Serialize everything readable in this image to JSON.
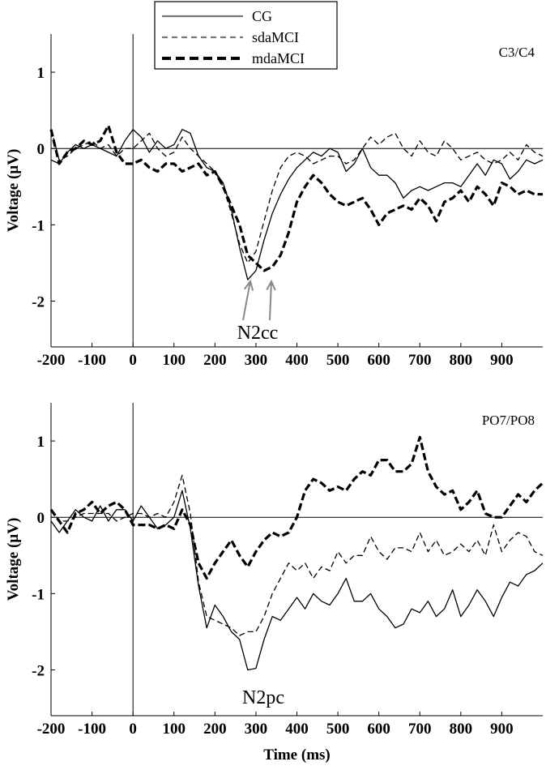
{
  "chart_data": [
    {
      "type": "line",
      "panel_label": "C3/C4",
      "xlabel": "",
      "ylabel": "Voltage (µV)",
      "xlim": [
        -200,
        1000
      ],
      "ylim": [
        -2.6,
        1.5
      ],
      "xticks": [
        -200,
        -100,
        0,
        100,
        200,
        300,
        400,
        500,
        600,
        700,
        800,
        900
      ],
      "yticks": [
        1,
        0,
        -1,
        -2
      ],
      "tick_labels_x": [
        "-200",
        "-100",
        "0",
        "100",
        "200",
        "300",
        "400",
        "500",
        "600",
        "700",
        "800",
        "900"
      ],
      "tick_labels_y": [
        "1",
        "0",
        "-1",
        "-2"
      ],
      "legend": {
        "placement": "top-center",
        "entries": [
          "CG",
          "sdaMCI",
          "mdaMCI"
        ]
      },
      "annotation": {
        "text": "N2cc",
        "arrow_targets": [
          [
            280,
            -1.72
          ],
          [
            330,
            -1.72
          ]
        ]
      },
      "series": [
        {
          "name": "CG",
          "style": "solid",
          "x": [
            -200,
            -180,
            -160,
            -140,
            -120,
            -100,
            -80,
            -60,
            -40,
            -20,
            0,
            20,
            40,
            60,
            80,
            100,
            120,
            140,
            160,
            180,
            200,
            220,
            240,
            260,
            280,
            300,
            320,
            340,
            360,
            380,
            400,
            420,
            440,
            460,
            480,
            500,
            520,
            540,
            560,
            580,
            600,
            620,
            640,
            660,
            680,
            700,
            720,
            740,
            760,
            780,
            800,
            820,
            840,
            860,
            880,
            900,
            920,
            940,
            960,
            980,
            1000
          ],
          "y": [
            -0.15,
            -0.2,
            -0.05,
            0.05,
            0.0,
            0.05,
            0.0,
            -0.05,
            -0.1,
            0.1,
            0.25,
            0.15,
            -0.05,
            0.1,
            0.0,
            0.05,
            0.25,
            0.2,
            -0.1,
            -0.25,
            -0.3,
            -0.45,
            -0.8,
            -1.3,
            -1.72,
            -1.6,
            -1.2,
            -0.85,
            -0.6,
            -0.4,
            -0.25,
            -0.15,
            -0.05,
            -0.1,
            0.0,
            -0.05,
            -0.3,
            -0.2,
            0.0,
            -0.25,
            -0.35,
            -0.35,
            -0.45,
            -0.65,
            -0.55,
            -0.5,
            -0.55,
            -0.5,
            -0.45,
            -0.45,
            -0.5,
            -0.35,
            -0.2,
            -0.35,
            -0.15,
            -0.2,
            -0.4,
            -0.3,
            -0.15,
            -0.2,
            -0.15
          ]
        },
        {
          "name": "sdaMCI",
          "style": "dashed-thin",
          "x": [
            -200,
            -180,
            -160,
            -140,
            -120,
            -100,
            -80,
            -60,
            -40,
            -20,
            0,
            20,
            40,
            60,
            80,
            100,
            120,
            140,
            160,
            180,
            200,
            220,
            240,
            260,
            280,
            300,
            320,
            340,
            360,
            380,
            400,
            420,
            440,
            460,
            480,
            500,
            520,
            540,
            560,
            580,
            600,
            620,
            640,
            660,
            680,
            700,
            720,
            740,
            760,
            780,
            800,
            820,
            840,
            860,
            880,
            900,
            920,
            940,
            960,
            980,
            1000
          ],
          "y": [
            0.25,
            -0.15,
            -0.1,
            0.0,
            0.05,
            0.1,
            0.0,
            0.05,
            -0.1,
            0.0,
            0.0,
            0.1,
            0.2,
            0.0,
            -0.1,
            -0.05,
            0.15,
            0.0,
            -0.1,
            -0.2,
            -0.3,
            -0.5,
            -0.85,
            -1.25,
            -1.5,
            -1.35,
            -0.95,
            -0.55,
            -0.25,
            -0.1,
            -0.05,
            -0.1,
            -0.2,
            -0.15,
            -0.1,
            -0.1,
            -0.2,
            -0.15,
            0.0,
            0.15,
            0.05,
            0.15,
            0.2,
            0.0,
            -0.1,
            0.1,
            -0.05,
            -0.1,
            0.1,
            0.0,
            -0.15,
            -0.1,
            -0.05,
            -0.15,
            -0.2,
            -0.15,
            -0.05,
            -0.15,
            0.05,
            -0.05,
            -0.1
          ]
        },
        {
          "name": "mdaMCI",
          "style": "dashed-thick",
          "x": [
            -200,
            -180,
            -160,
            -140,
            -120,
            -100,
            -80,
            -60,
            -40,
            -20,
            0,
            20,
            40,
            60,
            80,
            100,
            120,
            140,
            160,
            180,
            200,
            220,
            240,
            260,
            280,
            300,
            320,
            340,
            360,
            380,
            400,
            420,
            440,
            460,
            480,
            500,
            520,
            540,
            560,
            580,
            600,
            620,
            640,
            660,
            680,
            700,
            720,
            740,
            760,
            780,
            800,
            820,
            840,
            860,
            880,
            900,
            920,
            940,
            960,
            980,
            1000
          ],
          "y": [
            0.25,
            -0.2,
            -0.05,
            0.0,
            0.1,
            0.05,
            0.1,
            0.3,
            -0.05,
            -0.2,
            -0.2,
            -0.15,
            -0.25,
            -0.3,
            -0.2,
            -0.2,
            -0.3,
            -0.25,
            -0.2,
            -0.35,
            -0.3,
            -0.5,
            -0.75,
            -1.0,
            -1.4,
            -1.5,
            -1.6,
            -1.55,
            -1.4,
            -1.1,
            -0.7,
            -0.5,
            -0.35,
            -0.45,
            -0.6,
            -0.7,
            -0.75,
            -0.7,
            -0.65,
            -0.8,
            -1.0,
            -0.85,
            -0.8,
            -0.75,
            -0.8,
            -0.65,
            -0.75,
            -0.95,
            -0.7,
            -0.65,
            -0.55,
            -0.7,
            -0.5,
            -0.6,
            -0.75,
            -0.45,
            -0.5,
            -0.6,
            -0.55,
            -0.6,
            -0.6
          ]
        }
      ]
    },
    {
      "type": "line",
      "panel_label": "PO7/PO8",
      "xlabel": "Time (ms)",
      "ylabel": "Voltage (µV)",
      "xlim": [
        -200,
        1000
      ],
      "ylim": [
        -2.6,
        1.5
      ],
      "xticks": [
        -200,
        -100,
        0,
        100,
        200,
        300,
        400,
        500,
        600,
        700,
        800,
        900
      ],
      "yticks": [
        1,
        0,
        -1,
        -2
      ],
      "tick_labels_x": [
        "-200",
        "-100",
        "0",
        "100",
        "200",
        "300",
        "400",
        "500",
        "600",
        "700",
        "800",
        "900"
      ],
      "tick_labels_y": [
        "1",
        "0",
        "-1",
        "-2"
      ],
      "annotation": {
        "text": "N2pc"
      },
      "series": [
        {
          "name": "CG",
          "style": "solid",
          "x": [
            -200,
            -180,
            -160,
            -140,
            -120,
            -100,
            -80,
            -60,
            -40,
            -20,
            0,
            20,
            40,
            60,
            80,
            100,
            120,
            140,
            160,
            180,
            200,
            220,
            240,
            260,
            280,
            300,
            320,
            340,
            360,
            380,
            400,
            420,
            440,
            460,
            480,
            500,
            520,
            540,
            560,
            580,
            600,
            620,
            640,
            660,
            680,
            700,
            720,
            740,
            760,
            780,
            800,
            820,
            840,
            860,
            880,
            900,
            920,
            940,
            960,
            980,
            1000
          ],
          "y": [
            -0.05,
            -0.2,
            -0.05,
            0.1,
            0.0,
            -0.05,
            0.15,
            -0.05,
            0.1,
            0.1,
            -0.05,
            0.15,
            0.0,
            -0.15,
            -0.1,
            0.0,
            0.35,
            -0.15,
            -0.9,
            -1.45,
            -1.15,
            -1.3,
            -1.5,
            -1.6,
            -2.0,
            -1.98,
            -1.6,
            -1.3,
            -1.35,
            -1.2,
            -1.05,
            -1.2,
            -1.0,
            -1.1,
            -1.15,
            -1.0,
            -0.8,
            -1.1,
            -1.1,
            -1.0,
            -1.2,
            -1.3,
            -1.45,
            -1.4,
            -1.2,
            -1.25,
            -1.1,
            -1.3,
            -1.2,
            -0.95,
            -1.3,
            -1.15,
            -0.95,
            -1.1,
            -1.3,
            -1.05,
            -0.85,
            -0.9,
            -0.75,
            -0.7,
            -0.6
          ]
        },
        {
          "name": "sdaMCI",
          "style": "dashed-thin",
          "x": [
            -200,
            -180,
            -160,
            -140,
            -120,
            -100,
            -80,
            -60,
            -40,
            -20,
            0,
            20,
            40,
            60,
            80,
            100,
            120,
            140,
            160,
            180,
            200,
            220,
            240,
            260,
            280,
            300,
            320,
            340,
            360,
            380,
            400,
            420,
            440,
            460,
            480,
            500,
            520,
            540,
            560,
            580,
            600,
            620,
            640,
            660,
            680,
            700,
            720,
            740,
            760,
            780,
            800,
            820,
            840,
            860,
            880,
            900,
            920,
            940,
            960,
            980,
            1000
          ],
          "y": [
            0.1,
            -0.05,
            -0.05,
            0.0,
            0.05,
            0.05,
            0.05,
            0.05,
            -0.05,
            0.0,
            0.05,
            0.05,
            0.0,
            0.05,
            0.0,
            0.2,
            0.55,
            0.05,
            -0.85,
            -1.3,
            -1.35,
            -1.4,
            -1.45,
            -1.55,
            -1.5,
            -1.5,
            -1.3,
            -1.0,
            -0.8,
            -0.6,
            -0.7,
            -0.6,
            -0.8,
            -0.65,
            -0.7,
            -0.45,
            -0.6,
            -0.5,
            -0.5,
            -0.25,
            -0.45,
            -0.55,
            -0.4,
            -0.4,
            -0.45,
            -0.2,
            -0.45,
            -0.3,
            -0.5,
            -0.45,
            -0.35,
            -0.45,
            -0.3,
            -0.5,
            -0.1,
            -0.45,
            -0.3,
            -0.2,
            -0.25,
            -0.45,
            -0.5
          ]
        },
        {
          "name": "mdaMCI",
          "style": "dashed-thick",
          "x": [
            -200,
            -180,
            -160,
            -140,
            -120,
            -100,
            -80,
            -60,
            -40,
            -20,
            0,
            20,
            40,
            60,
            80,
            100,
            120,
            140,
            160,
            180,
            200,
            220,
            240,
            260,
            280,
            300,
            320,
            340,
            360,
            380,
            400,
            420,
            440,
            460,
            480,
            500,
            520,
            540,
            560,
            580,
            600,
            620,
            640,
            660,
            680,
            700,
            720,
            740,
            760,
            780,
            800,
            820,
            840,
            860,
            880,
            900,
            920,
            940,
            960,
            980,
            1000
          ],
          "y": [
            0.1,
            -0.05,
            -0.2,
            0.05,
            0.1,
            0.2,
            0.05,
            0.15,
            0.2,
            0.1,
            -0.1,
            -0.1,
            -0.1,
            -0.15,
            -0.1,
            -0.15,
            0.1,
            -0.1,
            -0.6,
            -0.8,
            -0.6,
            -0.45,
            -0.3,
            -0.5,
            -0.65,
            -0.45,
            -0.3,
            -0.2,
            -0.25,
            -0.2,
            0.0,
            0.35,
            0.5,
            0.45,
            0.35,
            0.4,
            0.35,
            0.5,
            0.6,
            0.55,
            0.75,
            0.75,
            0.6,
            0.6,
            0.7,
            1.05,
            0.6,
            0.4,
            0.3,
            0.35,
            0.1,
            0.2,
            0.35,
            0.05,
            0.0,
            0.0,
            0.15,
            0.3,
            0.2,
            0.35,
            0.45
          ]
        }
      ]
    }
  ]
}
